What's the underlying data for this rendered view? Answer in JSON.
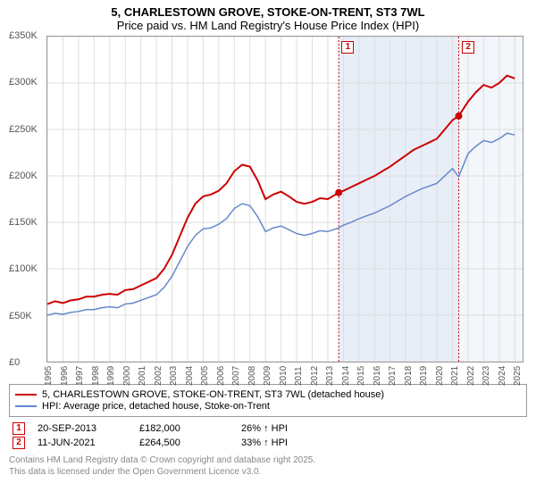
{
  "title1": "5, CHARLESTOWN GROVE, STOKE-ON-TRENT, ST3 7WL",
  "title2": "Price paid vs. HM Land Registry's House Price Index (HPI)",
  "chart": {
    "type": "line",
    "background_color": "#ffffff",
    "grid_color": "#dddddd",
    "border_color": "#999999",
    "xlim": [
      1995,
      2025.5
    ],
    "ylim": [
      0,
      350000
    ],
    "ytick_step": 50000,
    "yticks": [
      "£0",
      "£50K",
      "£100K",
      "£150K",
      "£200K",
      "£250K",
      "£300K",
      "£350K"
    ],
    "xticks": [
      1995,
      1996,
      1997,
      1998,
      1999,
      2000,
      2001,
      2002,
      2003,
      2004,
      2005,
      2006,
      2007,
      2008,
      2009,
      2010,
      2011,
      2012,
      2013,
      2014,
      2015,
      2016,
      2017,
      2018,
      2019,
      2020,
      2021,
      2022,
      2023,
      2024,
      2025
    ],
    "series": [
      {
        "name": "5, CHARLESTOWN GROVE, STOKE-ON-TRENT, ST3 7WL (detached house)",
        "color": "#cc0000",
        "width": 2,
        "points": [
          [
            1995,
            62000
          ],
          [
            1995.5,
            65000
          ],
          [
            1996,
            63000
          ],
          [
            1996.5,
            66000
          ],
          [
            1997,
            67000
          ],
          [
            1997.5,
            70000
          ],
          [
            1998,
            70000
          ],
          [
            1998.5,
            72000
          ],
          [
            1999,
            73000
          ],
          [
            1999.5,
            72000
          ],
          [
            2000,
            77000
          ],
          [
            2000.5,
            78000
          ],
          [
            2001,
            82000
          ],
          [
            2001.5,
            86000
          ],
          [
            2002,
            90000
          ],
          [
            2002.5,
            100000
          ],
          [
            2003,
            115000
          ],
          [
            2003.5,
            135000
          ],
          [
            2004,
            155000
          ],
          [
            2004.5,
            170000
          ],
          [
            2005,
            178000
          ],
          [
            2005.5,
            180000
          ],
          [
            2006,
            184000
          ],
          [
            2006.5,
            192000
          ],
          [
            2007,
            205000
          ],
          [
            2007.5,
            212000
          ],
          [
            2008,
            210000
          ],
          [
            2008.5,
            195000
          ],
          [
            2009,
            175000
          ],
          [
            2009.5,
            180000
          ],
          [
            2010,
            183000
          ],
          [
            2010.5,
            178000
          ],
          [
            2011,
            172000
          ],
          [
            2011.5,
            170000
          ],
          [
            2012,
            172000
          ],
          [
            2012.5,
            176000
          ],
          [
            2013,
            175000
          ],
          [
            2013.7,
            182000
          ],
          [
            2014,
            184000
          ],
          [
            2014.5,
            188000
          ],
          [
            2015,
            192000
          ],
          [
            2015.5,
            196000
          ],
          [
            2016,
            200000
          ],
          [
            2016.5,
            205000
          ],
          [
            2017,
            210000
          ],
          [
            2017.5,
            216000
          ],
          [
            2018,
            222000
          ],
          [
            2018.5,
            228000
          ],
          [
            2019,
            232000
          ],
          [
            2019.5,
            236000
          ],
          [
            2020,
            240000
          ],
          [
            2020.5,
            250000
          ],
          [
            2021,
            260000
          ],
          [
            2021.4,
            264500
          ],
          [
            2022,
            280000
          ],
          [
            2022.5,
            290000
          ],
          [
            2023,
            298000
          ],
          [
            2023.5,
            295000
          ],
          [
            2024,
            300000
          ],
          [
            2024.5,
            308000
          ],
          [
            2025,
            305000
          ]
        ]
      },
      {
        "name": "HPI: Average price, detached house, Stoke-on-Trent",
        "color": "#6688cc",
        "width": 1.5,
        "points": [
          [
            1995,
            50000
          ],
          [
            1995.5,
            52000
          ],
          [
            1996,
            51000
          ],
          [
            1996.5,
            53000
          ],
          [
            1997,
            54000
          ],
          [
            1997.5,
            56000
          ],
          [
            1998,
            56000
          ],
          [
            1998.5,
            58000
          ],
          [
            1999,
            59000
          ],
          [
            1999.5,
            58000
          ],
          [
            2000,
            62000
          ],
          [
            2000.5,
            63000
          ],
          [
            2001,
            66000
          ],
          [
            2001.5,
            69000
          ],
          [
            2002,
            72000
          ],
          [
            2002.5,
            80000
          ],
          [
            2003,
            92000
          ],
          [
            2003.5,
            108000
          ],
          [
            2004,
            124000
          ],
          [
            2004.5,
            136000
          ],
          [
            2005,
            143000
          ],
          [
            2005.5,
            144000
          ],
          [
            2006,
            148000
          ],
          [
            2006.5,
            154000
          ],
          [
            2007,
            165000
          ],
          [
            2007.5,
            170000
          ],
          [
            2008,
            168000
          ],
          [
            2008.5,
            156000
          ],
          [
            2009,
            140000
          ],
          [
            2009.5,
            144000
          ],
          [
            2010,
            146000
          ],
          [
            2010.5,
            142000
          ],
          [
            2011,
            138000
          ],
          [
            2011.5,
            136000
          ],
          [
            2012,
            138000
          ],
          [
            2012.5,
            141000
          ],
          [
            2013,
            140000
          ],
          [
            2013.7,
            144000
          ],
          [
            2014,
            147000
          ],
          [
            2014.5,
            150000
          ],
          [
            2015,
            154000
          ],
          [
            2015.5,
            157000
          ],
          [
            2016,
            160000
          ],
          [
            2016.5,
            164000
          ],
          [
            2017,
            168000
          ],
          [
            2017.5,
            173000
          ],
          [
            2018,
            178000
          ],
          [
            2018.5,
            182000
          ],
          [
            2019,
            186000
          ],
          [
            2019.5,
            189000
          ],
          [
            2020,
            192000
          ],
          [
            2020.5,
            200000
          ],
          [
            2021,
            208000
          ],
          [
            2021.4,
            199000
          ],
          [
            2022,
            224000
          ],
          [
            2022.5,
            232000
          ],
          [
            2023,
            238000
          ],
          [
            2023.5,
            236000
          ],
          [
            2024,
            240000
          ],
          [
            2024.5,
            246000
          ],
          [
            2025,
            244000
          ]
        ]
      }
    ],
    "shaded_regions": [
      {
        "from": 2013.7,
        "to": 2021.4,
        "color": "#e8eef8"
      },
      {
        "from": 2021.4,
        "to": 2025.5,
        "color": "#f3f6fb"
      }
    ],
    "markers": [
      {
        "id": "1",
        "x": 2013.7,
        "y": 182000
      },
      {
        "id": "2",
        "x": 2021.4,
        "y": 264500
      }
    ],
    "flag_top_offset": 6
  },
  "legend": {
    "items": [
      {
        "color": "#cc0000",
        "width": 2,
        "label": "5, CHARLESTOWN GROVE, STOKE-ON-TRENT, ST3 7WL (detached house)"
      },
      {
        "color": "#6688cc",
        "width": 1.5,
        "label": "HPI: Average price, detached house, Stoke-on-Trent"
      }
    ]
  },
  "data_rows": [
    {
      "id": "1",
      "date": "20-SEP-2013",
      "price": "£182,000",
      "delta": "26% ↑ HPI"
    },
    {
      "id": "2",
      "date": "11-JUN-2021",
      "price": "£264,500",
      "delta": "33% ↑ HPI"
    }
  ],
  "footer": {
    "line1": "Contains HM Land Registry data © Crown copyright and database right 2025.",
    "line2": "This data is licensed under the Open Government Licence v3.0."
  }
}
